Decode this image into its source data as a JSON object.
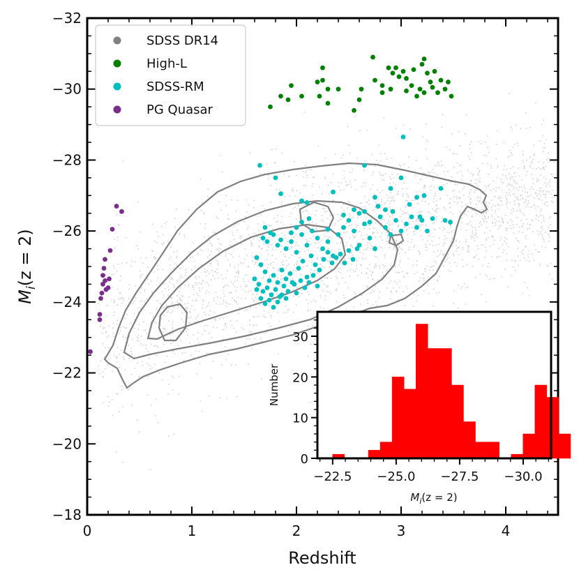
{
  "chart_data": [
    {
      "type": "scatter",
      "xlabel": "Redshift",
      "ylabel": "M_i(z = 2)",
      "xlim": [
        0,
        4.5
      ],
      "ylim": [
        -18,
        -32
      ],
      "xticks": [
        0,
        1,
        2,
        3,
        4
      ],
      "yticks": [
        -32,
        -30,
        -28,
        -26,
        -24,
        -22,
        -20,
        -18
      ],
      "legend_position": "top-left",
      "legend": [
        {
          "label": "SDSS DR14",
          "color": "#808080"
        },
        {
          "label": "High-L",
          "color": "#008000"
        },
        {
          "label": "SDSS-RM",
          "color": "#00bfbf"
        },
        {
          "label": "PG Quasar",
          "color": "#7b2d8b"
        }
      ],
      "series": [
        {
          "name": "High-L",
          "color": "#008000",
          "points": [
            [
              1.75,
              -29.5
            ],
            [
              1.85,
              -29.8
            ],
            [
              1.92,
              -29.7
            ],
            [
              1.95,
              -30.1
            ],
            [
              2.05,
              -29.8
            ],
            [
              2.2,
              -30.2
            ],
            [
              2.22,
              -29.8
            ],
            [
              2.25,
              -30.6
            ],
            [
              2.25,
              -30.25
            ],
            [
              2.3,
              -30.0
            ],
            [
              2.3,
              -29.6
            ],
            [
              2.4,
              -30.0
            ],
            [
              2.55,
              -29.4
            ],
            [
              2.6,
              -29.7
            ],
            [
              2.62,
              -30.0
            ],
            [
              2.73,
              -30.9
            ],
            [
              2.75,
              -30.25
            ],
            [
              2.82,
              -30.1
            ],
            [
              2.82,
              -29.9
            ],
            [
              2.88,
              -30.6
            ],
            [
              2.9,
              -30.0
            ],
            [
              2.92,
              -30.45
            ],
            [
              2.95,
              -30.6
            ],
            [
              2.98,
              -30.35
            ],
            [
              3.02,
              -30.5
            ],
            [
              3.05,
              -30.3
            ],
            [
              3.1,
              -30.1
            ],
            [
              3.12,
              -30.55
            ],
            [
              3.15,
              -29.8
            ],
            [
              3.18,
              -30.0
            ],
            [
              3.2,
              -30.7
            ],
            [
              3.22,
              -29.9
            ],
            [
              3.25,
              -30.45
            ],
            [
              3.28,
              -30.2
            ],
            [
              3.3,
              -30.05
            ],
            [
              3.32,
              -30.5
            ],
            [
              3.35,
              -29.9
            ],
            [
              3.38,
              -30.25
            ],
            [
              3.42,
              -30.0
            ],
            [
              3.45,
              -30.2
            ],
            [
              3.48,
              -29.8
            ],
            [
              3.22,
              -30.85
            ],
            [
              3.05,
              -29.95
            ]
          ]
        },
        {
          "name": "SDSS-RM",
          "color": "#00bfbf",
          "points": [
            [
              1.65,
              -27.85
            ],
            [
              1.8,
              -27.5
            ],
            [
              1.85,
              -27.05
            ],
            [
              2.05,
              -26.85
            ],
            [
              2.1,
              -26.8
            ],
            [
              2.35,
              -27.1
            ],
            [
              2.65,
              -27.85
            ],
            [
              2.75,
              -26.95
            ],
            [
              2.85,
              -26.6
            ],
            [
              2.9,
              -27.2
            ],
            [
              3.0,
              -27.5
            ],
            [
              3.02,
              -28.65
            ],
            [
              3.15,
              -26.95
            ],
            [
              3.22,
              -27.0
            ],
            [
              3.38,
              -27.2
            ],
            [
              3.47,
              -26.25
            ],
            [
              1.7,
              -26.1
            ],
            [
              1.75,
              -25.95
            ],
            [
              1.68,
              -25.8
            ],
            [
              1.72,
              -25.7
            ],
            [
              1.78,
              -25.9
            ],
            [
              1.82,
              -25.6
            ],
            [
              1.85,
              -25.75
            ],
            [
              1.9,
              -25.5
            ],
            [
              1.95,
              -25.7
            ],
            [
              2.0,
              -25.4
            ],
            [
              2.05,
              -25.9
            ],
            [
              2.1,
              -25.6
            ],
            [
              2.15,
              -26.0
            ],
            [
              2.2,
              -25.8
            ],
            [
              2.25,
              -25.5
            ],
            [
              2.3,
              -25.7
            ],
            [
              2.35,
              -25.3
            ],
            [
              2.4,
              -25.9
            ],
            [
              2.45,
              -26.1
            ],
            [
              2.5,
              -26.3
            ],
            [
              2.55,
              -26.0
            ],
            [
              2.6,
              -25.6
            ],
            [
              2.65,
              -26.2
            ],
            [
              2.7,
              -25.8
            ],
            [
              2.75,
              -25.5
            ],
            [
              2.8,
              -26.4
            ],
            [
              2.85,
              -26.1
            ],
            [
              2.9,
              -25.9
            ],
            [
              2.95,
              -26.3
            ],
            [
              3.0,
              -26.0
            ],
            [
              3.05,
              -26.2
            ],
            [
              3.1,
              -26.4
            ],
            [
              3.15,
              -26.1
            ],
            [
              3.2,
              -26.3
            ],
            [
              3.25,
              -26.0
            ],
            [
              2.55,
              -26.6
            ],
            [
              2.6,
              -26.5
            ],
            [
              2.65,
              -26.55
            ],
            [
              1.62,
              -25.25
            ],
            [
              1.66,
              -25.05
            ],
            [
              1.7,
              -24.85
            ],
            [
              1.74,
              -24.6
            ],
            [
              1.78,
              -24.75
            ],
            [
              1.82,
              -24.55
            ],
            [
              1.86,
              -24.9
            ],
            [
              1.9,
              -24.65
            ],
            [
              1.94,
              -24.8
            ],
            [
              1.98,
              -24.5
            ],
            [
              2.02,
              -24.95
            ],
            [
              2.06,
              -25.15
            ],
            [
              2.1,
              -24.7
            ],
            [
              2.14,
              -25.3
            ],
            [
              2.18,
              -25.05
            ],
            [
              2.22,
              -24.9
            ],
            [
              2.26,
              -25.2
            ],
            [
              2.3,
              -25.4
            ],
            [
              2.34,
              -25.1
            ],
            [
              2.38,
              -25.25
            ],
            [
              2.42,
              -25.35
            ],
            [
              2.46,
              -25.1
            ],
            [
              2.5,
              -25.45
            ],
            [
              2.54,
              -25.2
            ],
            [
              2.58,
              -25.5
            ],
            [
              1.64,
              -24.5
            ],
            [
              1.68,
              -24.3
            ],
            [
              1.72,
              -24.4
            ],
            [
              1.76,
              -24.2
            ],
            [
              1.8,
              -24.35
            ],
            [
              1.84,
              -24.15
            ],
            [
              1.88,
              -24.45
            ],
            [
              1.92,
              -24.3
            ],
            [
              1.96,
              -24.55
            ],
            [
              2.0,
              -24.25
            ],
            [
              2.04,
              -24.6
            ],
            [
              1.66,
              -24.1
            ],
            [
              1.7,
              -23.95
            ],
            [
              1.74,
              -24.05
            ],
            [
              1.78,
              -23.85
            ],
            [
              1.82,
              -24.0
            ],
            [
              1.86,
              -24.2
            ],
            [
              1.9,
              -24.1
            ],
            [
              1.62,
              -24.35
            ],
            [
              1.6,
              -24.65
            ],
            [
              2.08,
              -24.4
            ],
            [
              2.12,
              -24.55
            ],
            [
              2.16,
              -24.75
            ],
            [
              2.2,
              -24.45
            ],
            [
              1.95,
              -25.95
            ],
            [
              2.0,
              -26.1
            ],
            [
              2.05,
              -26.25
            ],
            [
              2.12,
              -26.35
            ],
            [
              2.3,
              -26.05
            ],
            [
              2.45,
              -26.45
            ],
            [
              2.7,
              -26.25
            ],
            [
              2.78,
              -26.7
            ],
            [
              2.92,
              -26.55
            ],
            [
              3.08,
              -26.75
            ],
            [
              3.18,
              -26.4
            ],
            [
              3.3,
              -26.35
            ],
            [
              3.42,
              -26.3
            ]
          ]
        },
        {
          "name": "PG Quasar",
          "color": "#7b2d8b",
          "points": [
            [
              0.03,
              -22.6
            ],
            [
              0.12,
              -23.5
            ],
            [
              0.12,
              -23.65
            ],
            [
              0.13,
              -24.1
            ],
            [
              0.14,
              -24.25
            ],
            [
              0.15,
              -24.5
            ],
            [
              0.15,
              -24.75
            ],
            [
              0.16,
              -24.95
            ],
            [
              0.17,
              -24.6
            ],
            [
              0.17,
              -25.2
            ],
            [
              0.18,
              -24.35
            ],
            [
              0.2,
              -24.4
            ],
            [
              0.21,
              -24.65
            ],
            [
              0.22,
              -25.45
            ],
            [
              0.24,
              -26.05
            ],
            [
              0.28,
              -26.7
            ],
            [
              0.33,
              -26.55
            ]
          ]
        }
      ]
    },
    {
      "type": "bar",
      "title": "",
      "xlabel": "M_i(z = 2)",
      "ylabel": "Number",
      "xlim": [
        -21.9,
        -31.1
      ],
      "ylim": [
        0,
        36
      ],
      "xticks": [
        -22.5,
        -25.0,
        -27.5,
        -30.0
      ],
      "xtick_labels": [
        "−22.5",
        "−25.0",
        "−27.5",
        "−30.0"
      ],
      "yticks": [
        0,
        10,
        20,
        30
      ],
      "color": "#ff0000",
      "bin_width": 0.5,
      "bins": [
        {
          "start": -22.5,
          "value": 1
        },
        {
          "start": -23.0,
          "value": 0
        },
        {
          "start": -23.5,
          "value": 0
        },
        {
          "start": -24.0,
          "value": 2
        },
        {
          "start": -24.5,
          "value": 4
        },
        {
          "start": -25.0,
          "value": 20
        },
        {
          "start": -25.5,
          "value": 17
        },
        {
          "start": -26.0,
          "value": 33
        },
        {
          "start": -26.5,
          "value": 27
        },
        {
          "start": -27.0,
          "value": 27
        },
        {
          "start": -27.5,
          "value": 18
        },
        {
          "start": -28.0,
          "value": 9
        },
        {
          "start": -28.5,
          "value": 4
        },
        {
          "start": -29.0,
          "value": 4
        },
        {
          "start": -29.5,
          "value": 0
        },
        {
          "start": -30.0,
          "value": 1
        },
        {
          "start": -30.5,
          "value": 6
        },
        {
          "start": -31.0,
          "value": 18
        },
        {
          "start": -31.5,
          "value": 15
        },
        {
          "start": -32.0,
          "value": 6
        }
      ]
    }
  ],
  "labels": {
    "xlabel": "Redshift",
    "ylabel_main": "M",
    "ylabel_sub": "i",
    "ylabel_tail": "(z = 2)",
    "inset_ylabel": "Number",
    "inset_xlabel_main": "M",
    "inset_xlabel_sub": "i",
    "inset_xlabel_tail": "(z = 2)"
  }
}
